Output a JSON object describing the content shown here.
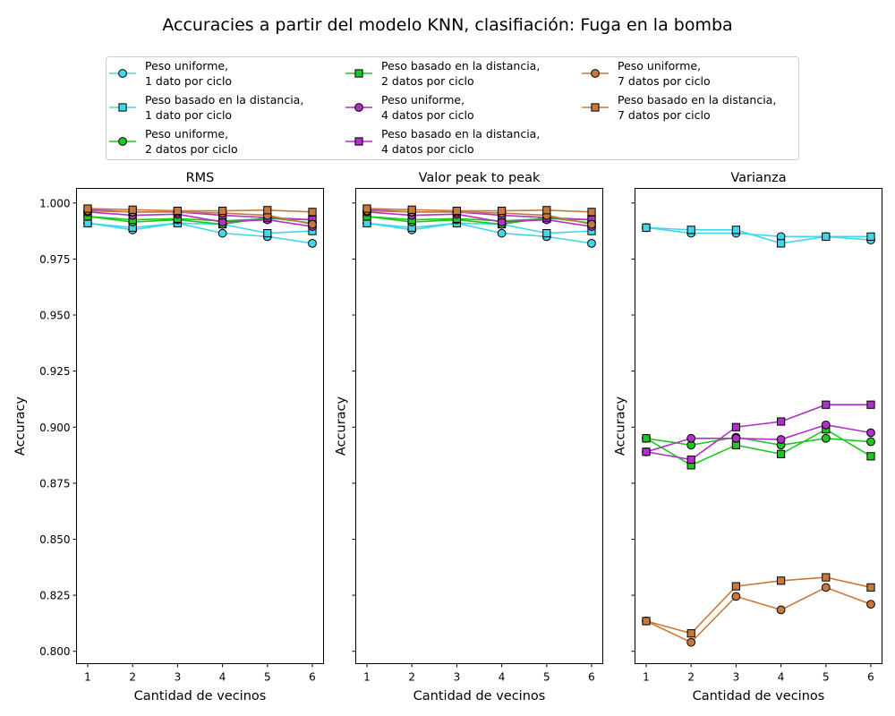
{
  "figure": {
    "title": "Accuracies a partir del modelo KNN, clasifiación: Fuga en la bomba"
  },
  "legend": {
    "placement": "top-center",
    "columns": 3,
    "entries": [
      {
        "line1": "Peso uniforme,",
        "line2": "1 dato por ciclo",
        "color": "#40d8e8",
        "marker": "circle"
      },
      {
        "line1": "Peso basado en la distancia,",
        "line2": "1 dato por ciclo",
        "color": "#40d8e8",
        "marker": "square"
      },
      {
        "line1": "Peso uniforme,",
        "line2": "2 datos por ciclo",
        "color": "#1ec81e",
        "marker": "circle"
      },
      {
        "line1": "Peso basado en la distancia,",
        "line2": "2 datos por ciclo",
        "color": "#1ec81e",
        "marker": "square"
      },
      {
        "line1": "Peso uniforme,",
        "line2": "4 datos por ciclo",
        "color": "#b030c8",
        "marker": "circle"
      },
      {
        "line1": "Peso basado en la distancia,",
        "line2": "4 datos por ciclo",
        "color": "#b030c8",
        "marker": "square"
      },
      {
        "line1": "Peso uniforme,",
        "line2": "7 datos por ciclo",
        "color": "#c8783c",
        "marker": "circle"
      },
      {
        "line1": "Peso basado en la distancia,",
        "line2": "7 datos por ciclo",
        "color": "#c8783c",
        "marker": "square"
      }
    ]
  },
  "chart_data": [
    {
      "type": "line",
      "title": "RMS",
      "xlabel": "Cantidad de vecinos",
      "ylabel": "Accuracy",
      "x": [
        1,
        2,
        3,
        4,
        5,
        6
      ],
      "xticks": [
        "1",
        "2",
        "3",
        "4",
        "5",
        "6"
      ],
      "ylim": [
        0.7945,
        1.0065
      ],
      "yticks": [
        "0.800",
        "0.825",
        "0.850",
        "0.875",
        "0.900",
        "0.925",
        "0.950",
        "0.975",
        "1.000"
      ],
      "grid": false,
      "series": [
        {
          "name": "Peso uniforme, 1 dato por ciclo",
          "values": [
            0.991,
            0.988,
            0.991,
            0.9865,
            0.985,
            0.982
          ]
        },
        {
          "name": "Peso basado en la distancia, 1 dato por ciclo",
          "values": [
            0.991,
            0.989,
            0.991,
            0.9905,
            0.9865,
            0.9875
          ]
        },
        {
          "name": "Peso uniforme, 2 datos por ciclo",
          "values": [
            0.994,
            0.9915,
            0.9925,
            0.9905,
            0.9935,
            0.991
          ]
        },
        {
          "name": "Peso basado en la distancia, 2 datos por ciclo",
          "values": [
            0.994,
            0.9925,
            0.993,
            0.992,
            0.993,
            0.9925
          ]
        },
        {
          "name": "Peso uniforme, 4 datos por ciclo",
          "values": [
            0.996,
            0.9945,
            0.995,
            0.9915,
            0.9925,
            0.9895
          ]
        },
        {
          "name": "Peso basado en la distancia, 4 datos por ciclo",
          "values": [
            0.997,
            0.996,
            0.996,
            0.9945,
            0.9935,
            0.9925
          ]
        },
        {
          "name": "Peso uniforme, 7 datos por ciclo",
          "values": [
            0.9965,
            0.996,
            0.996,
            0.9955,
            0.9945,
            0.9905
          ]
        },
        {
          "name": "Peso basado en la distancia, 7 datos por ciclo",
          "values": [
            0.9975,
            0.997,
            0.9965,
            0.9965,
            0.9968,
            0.996
          ]
        }
      ]
    },
    {
      "type": "line",
      "title": "Valor peak to peak",
      "xlabel": "Cantidad de vecinos",
      "ylabel": "Accuracy",
      "x": [
        1,
        2,
        3,
        4,
        5,
        6
      ],
      "xticks": [
        "1",
        "2",
        "3",
        "4",
        "5",
        "6"
      ],
      "ylim": [
        0.7945,
        1.0065
      ],
      "yticks": [],
      "grid": false,
      "series": [
        {
          "name": "Peso uniforme, 1 dato por ciclo",
          "values": [
            0.991,
            0.988,
            0.991,
            0.9865,
            0.985,
            0.982
          ]
        },
        {
          "name": "Peso basado en la distancia, 1 dato por ciclo",
          "values": [
            0.991,
            0.989,
            0.991,
            0.9905,
            0.9865,
            0.9875
          ]
        },
        {
          "name": "Peso uniforme, 2 datos por ciclo",
          "values": [
            0.994,
            0.9915,
            0.9925,
            0.9905,
            0.9935,
            0.991
          ]
        },
        {
          "name": "Peso basado en la distancia, 2 datos por ciclo",
          "values": [
            0.994,
            0.9925,
            0.993,
            0.992,
            0.993,
            0.9925
          ]
        },
        {
          "name": "Peso uniforme, 4 datos por ciclo",
          "values": [
            0.996,
            0.9945,
            0.995,
            0.9915,
            0.9925,
            0.9895
          ]
        },
        {
          "name": "Peso basado en la distancia, 4 datos por ciclo",
          "values": [
            0.997,
            0.996,
            0.996,
            0.9945,
            0.9935,
            0.9925
          ]
        },
        {
          "name": "Peso uniforme, 7 datos por ciclo",
          "values": [
            0.9965,
            0.996,
            0.996,
            0.9955,
            0.9945,
            0.9905
          ]
        },
        {
          "name": "Peso basado en la distancia, 7 datos por ciclo",
          "values": [
            0.9975,
            0.997,
            0.9965,
            0.9965,
            0.9968,
            0.996
          ]
        }
      ]
    },
    {
      "type": "line",
      "title": "Varianza",
      "xlabel": "Cantidad de vecinos",
      "ylabel": "Accuracy",
      "x": [
        1,
        2,
        3,
        4,
        5,
        6
      ],
      "xticks": [
        "1",
        "2",
        "3",
        "4",
        "5",
        "6"
      ],
      "ylim": [
        0.7945,
        1.0065
      ],
      "yticks": [],
      "grid": false,
      "series": [
        {
          "name": "Peso uniforme, 1 dato por ciclo",
          "values": [
            0.989,
            0.9865,
            0.9865,
            0.985,
            0.985,
            0.9835
          ]
        },
        {
          "name": "Peso basado en la distancia, 1 dato por ciclo",
          "values": [
            0.989,
            0.988,
            0.988,
            0.982,
            0.985,
            0.985
          ]
        },
        {
          "name": "Peso uniforme, 2 datos por ciclo",
          "values": [
            0.895,
            0.892,
            0.8955,
            0.892,
            0.895,
            0.8935
          ]
        },
        {
          "name": "Peso basado en la distancia, 2 datos por ciclo",
          "values": [
            0.895,
            0.883,
            0.892,
            0.888,
            0.899,
            0.887
          ]
        },
        {
          "name": "Peso uniforme, 4 datos por ciclo",
          "values": [
            0.889,
            0.895,
            0.895,
            0.8945,
            0.901,
            0.8975
          ]
        },
        {
          "name": "Peso basado en la distancia, 4 datos por ciclo",
          "values": [
            0.889,
            0.8855,
            0.9,
            0.9025,
            0.91,
            0.91
          ]
        },
        {
          "name": "Peso uniforme, 7 datos por ciclo",
          "values": [
            0.8135,
            0.804,
            0.8245,
            0.8185,
            0.8285,
            0.821
          ]
        },
        {
          "name": "Peso basado en la distancia, 7 datos por ciclo",
          "values": [
            0.8135,
            0.808,
            0.829,
            0.8315,
            0.833,
            0.8285
          ]
        }
      ]
    }
  ]
}
